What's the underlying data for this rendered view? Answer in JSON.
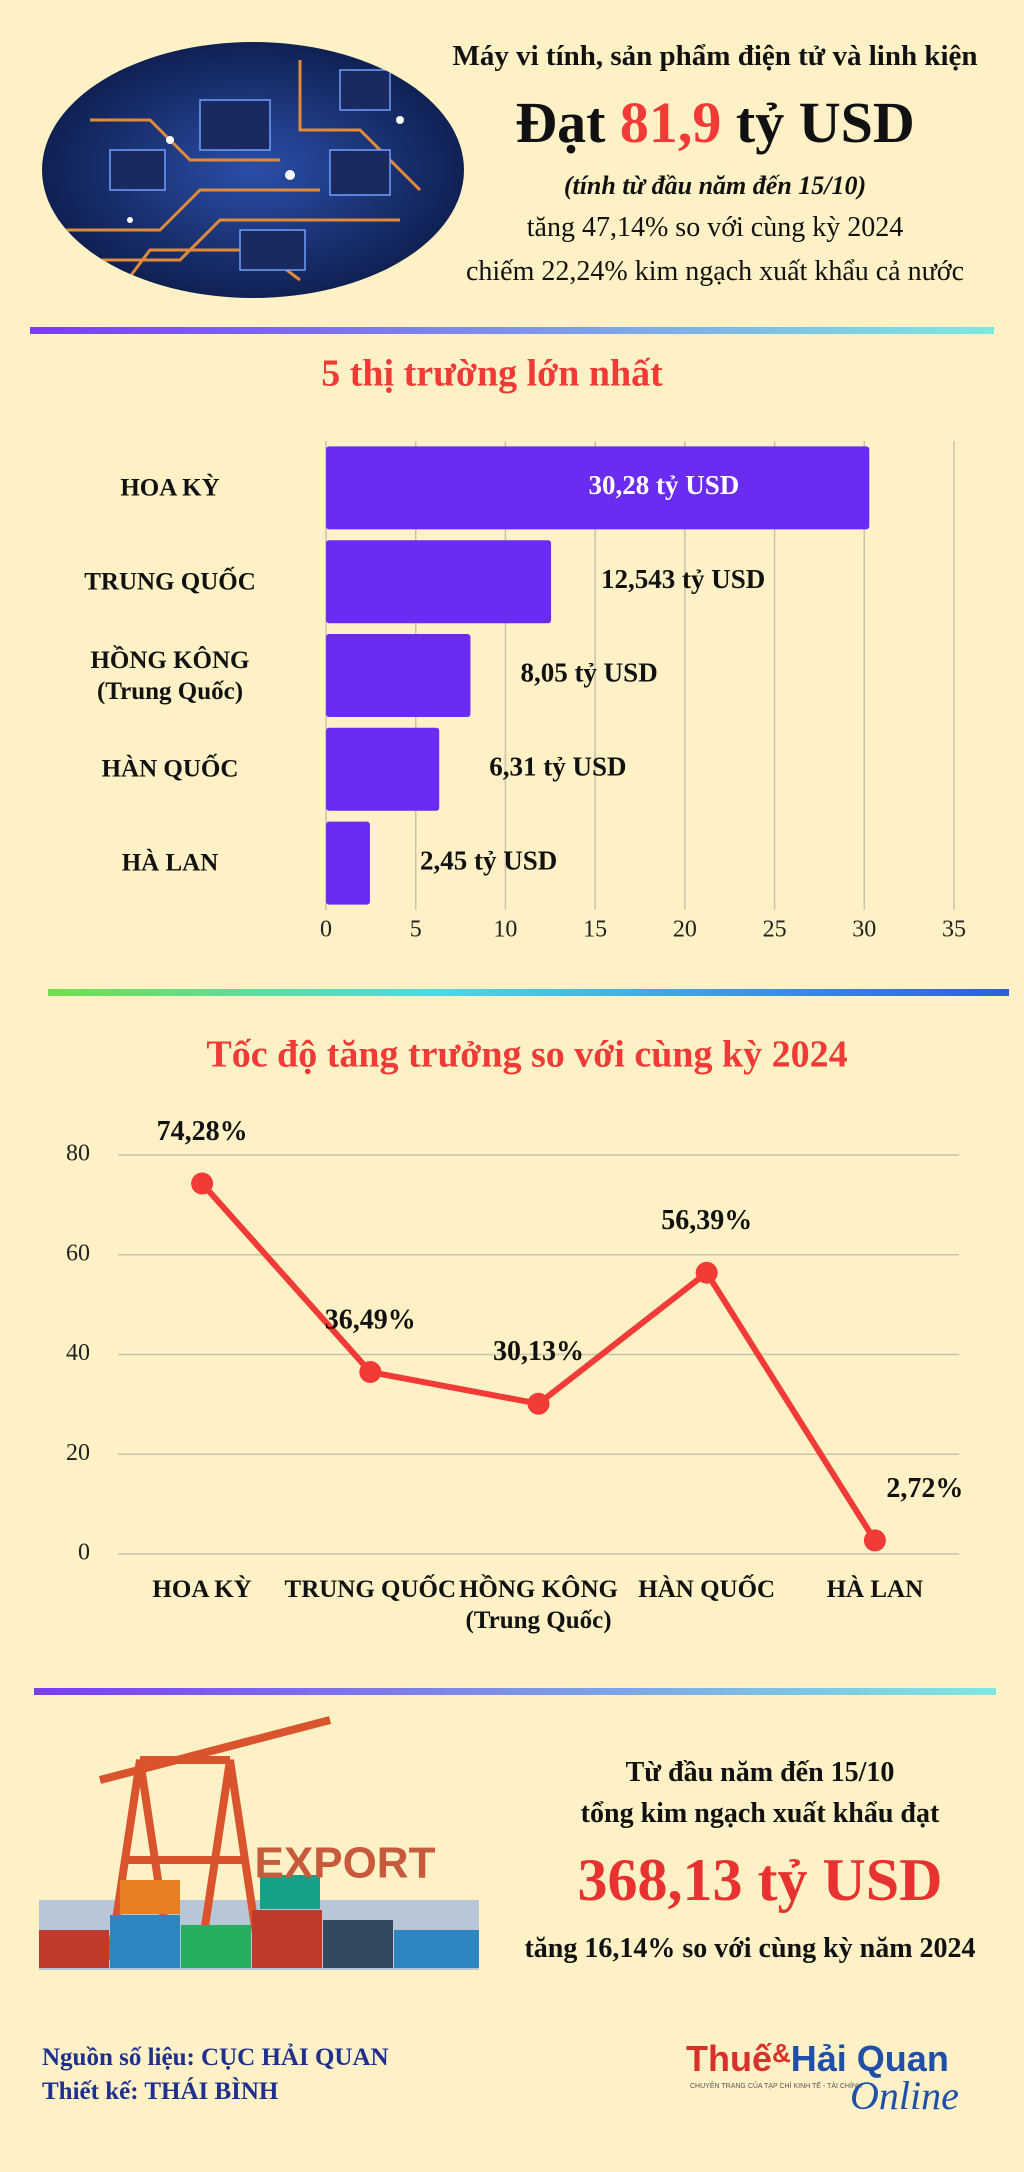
{
  "header": {
    "subtitle": "Máy vi tính, sản phẩm điện tử và linh kiện",
    "headline_prefix": "Đạt",
    "headline_value": "81,9",
    "headline_suffix": "tỷ USD",
    "period": "(tính từ đầu năm đến 15/10)",
    "growth": "tăng 47,14% so với cùng kỳ 2024",
    "share": "chiếm 22,24% kim ngạch xuất khẩu cả nước"
  },
  "chart_data": [
    {
      "type": "bar",
      "orientation": "horizontal",
      "title": "5 thị trường lớn nhất",
      "categories": [
        "HOA KỲ",
        "TRUNG QUỐC",
        "HỒNG KÔNG\n(Trung Quốc)",
        "HÀN QUỐC",
        "HÀ LAN"
      ],
      "values": [
        30.28,
        12.543,
        8.05,
        6.31,
        2.45
      ],
      "value_labels": [
        "30,28 tỷ USD",
        "12,543 tỷ USD",
        "8,05 tỷ USD",
        "6,31 tỷ USD",
        "2,45 tỷ USD"
      ],
      "color": "#6a2cf2",
      "xlim": [
        0,
        35
      ],
      "xticks": [
        0,
        5,
        10,
        15,
        20,
        25,
        30,
        35
      ],
      "grid": true
    },
    {
      "type": "line",
      "title": "Tốc độ tăng trưởng so với cùng kỳ 2024",
      "categories": [
        "HOA KỲ",
        "TRUNG QUỐC",
        "HỒNG KÔNG\n(Trung Quốc)",
        "HÀN QUỐC",
        "HÀ LAN"
      ],
      "values": [
        74.28,
        36.49,
        30.13,
        56.39,
        2.72
      ],
      "value_labels": [
        "74,28%",
        "36,49%",
        "30,13%",
        "56,39%",
        "2,72%"
      ],
      "color": "#f23b36",
      "ylim": [
        0,
        80
      ],
      "yticks": [
        0,
        20,
        40,
        60,
        80
      ],
      "grid": true
    }
  ],
  "summary": {
    "image_label": "EXPORT",
    "line1": "Từ đầu năm đến 15/10",
    "line2": "tổng kim ngạch xuất khẩu đạt",
    "total": "368,13 tỷ USD",
    "growth": "tăng 16,14% so với cùng kỳ năm 2024"
  },
  "footer": {
    "source": "Nguồn số liệu: CỤC HẢI QUAN",
    "design": "Thiết kế: THÁI BÌNH",
    "logo_part1": "Thuế",
    "logo_amp": "&",
    "logo_part2": "Hải Quan",
    "logo_script": "Online",
    "logo_tagline": "CHUYÊN TRANG CỦA TẠP CHÍ KINH TẾ - TÀI CHÍNH"
  }
}
